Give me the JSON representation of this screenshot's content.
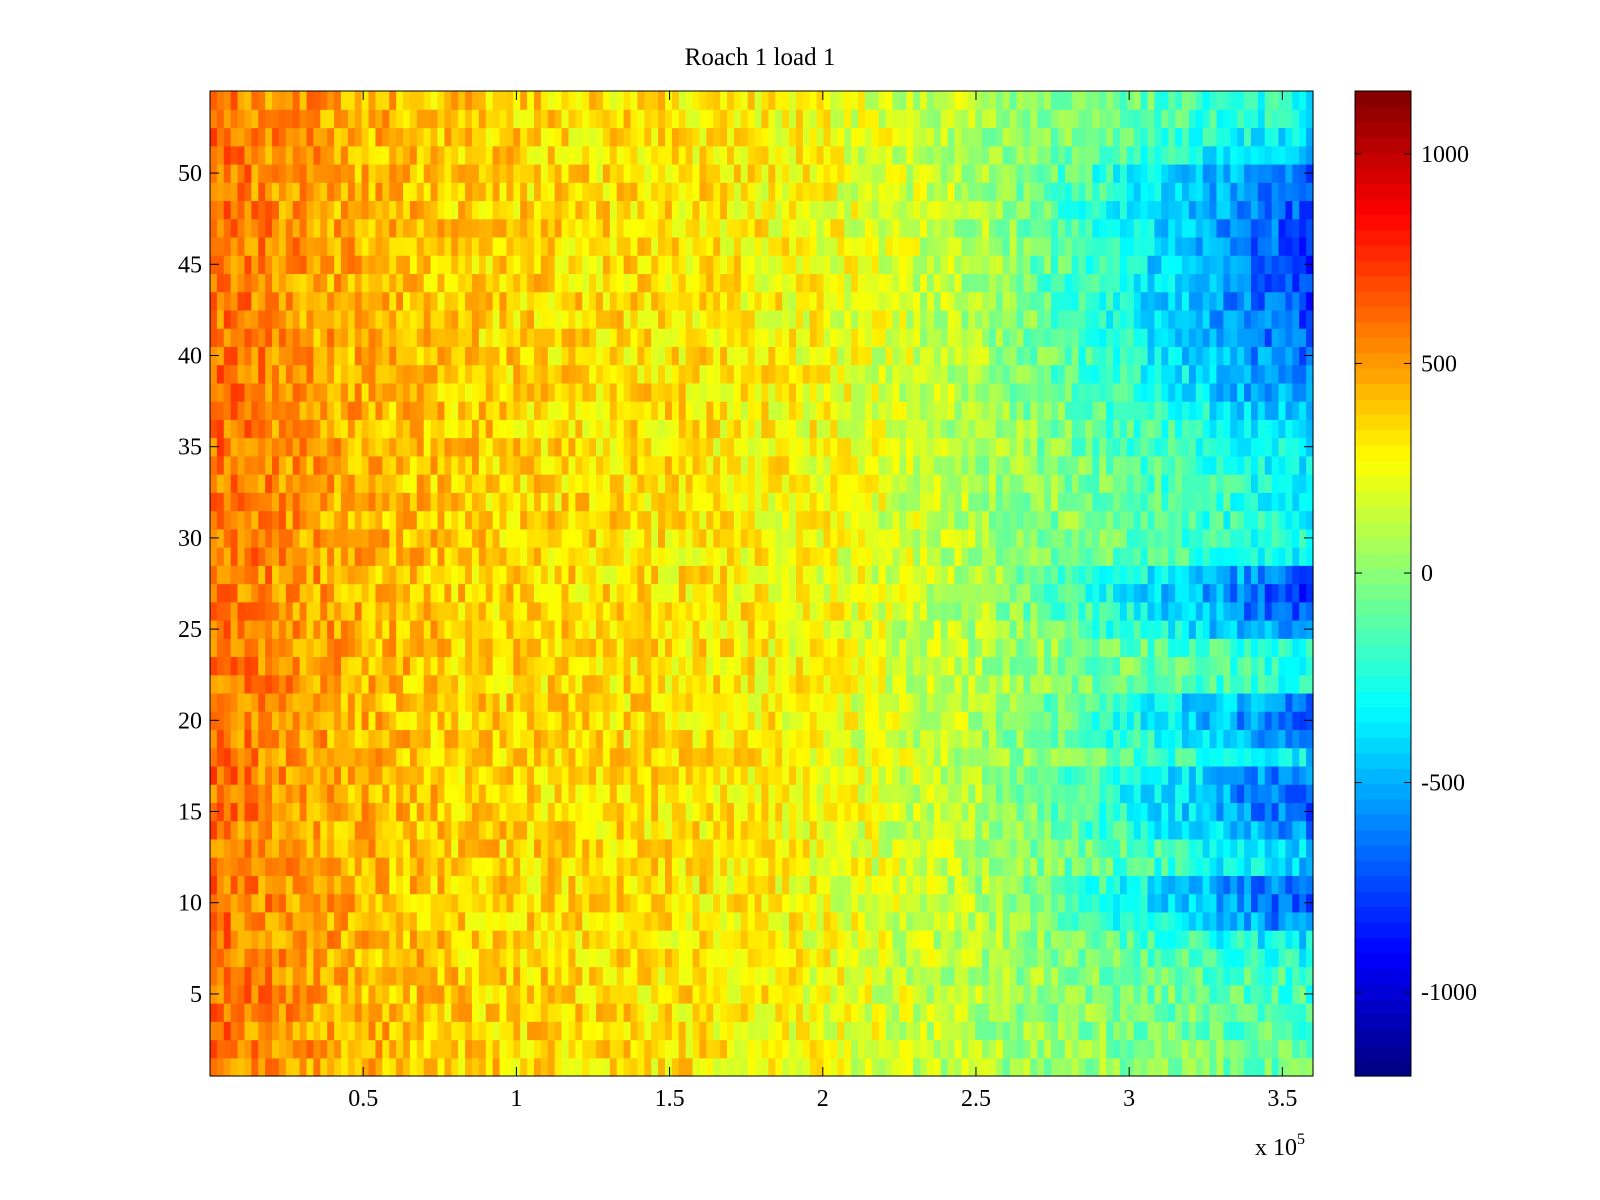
{
  "chart_data": {
    "type": "heatmap",
    "title": "Roach 1 load 1",
    "xlabel": "",
    "ylabel": "",
    "x_exponent_label": {
      "prefix": "x 10",
      "power": "5"
    },
    "xlim": [
      0,
      360000
    ],
    "ylim": [
      0.5,
      54.5
    ],
    "x_ticks": [
      50000,
      100000,
      150000,
      200000,
      250000,
      300000,
      350000
    ],
    "x_tick_labels": [
      "0.5",
      "1",
      "1.5",
      "2",
      "2.5",
      "3",
      "3.5"
    ],
    "y_ticks": [
      5,
      10,
      15,
      20,
      25,
      30,
      35,
      40,
      45,
      50
    ],
    "y_tick_labels": [
      "5",
      "10",
      "15",
      "20",
      "25",
      "30",
      "35",
      "40",
      "45",
      "50"
    ],
    "rows": 54,
    "colormap": "jet",
    "color_range": [
      -1200,
      1150
    ],
    "colorbar_ticks": [
      1000,
      500,
      0,
      -500,
      -1000
    ],
    "colorbar_tick_labels": [
      "1000",
      "500",
      "0",
      "-500",
      "-1000"
    ],
    "grid": false,
    "trend_summary": "values highest (about 400 to 700) near x = 0 and decreasing to the right; rows 9-11, 14-17, 19-21, 25-28 and 38-50 reach about -600 to -900 for x above 270000; other rows stay near -100 to -300 at the right edge",
    "row_right_edge_values": [
      -100,
      -120,
      -140,
      -160,
      -180,
      -200,
      -260,
      -380,
      -650,
      -750,
      -720,
      -450,
      -420,
      -600,
      -700,
      -750,
      -650,
      -380,
      -600,
      -700,
      -650,
      -300,
      -250,
      -280,
      -600,
      -750,
      -800,
      -700,
      -350,
      -300,
      -300,
      -300,
      -320,
      -350,
      -380,
      -420,
      -500,
      -600,
      -650,
      -700,
      -720,
      -750,
      -780,
      -780,
      -800,
      -780,
      -760,
      -750,
      -720,
      -700,
      -500,
      -380,
      -300,
      -280
    ]
  }
}
